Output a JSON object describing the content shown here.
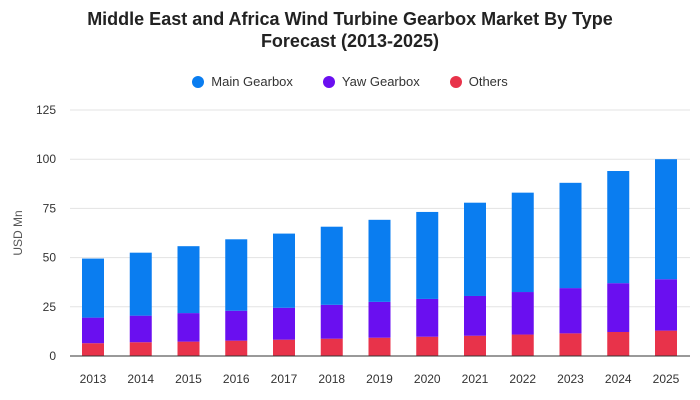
{
  "chart_data": {
    "type": "bar",
    "stacked": true,
    "title_lines": [
      "Middle East and Africa Wind Turbine Gearbox Market By Type",
      "Forecast (2013-2025)"
    ],
    "xlabel": "",
    "ylabel": "USD Mn",
    "ylim": [
      0,
      125
    ],
    "yticks": [
      0,
      25,
      50,
      75,
      100,
      125
    ],
    "grid": true,
    "legend_position": "top",
    "categories": [
      "2013",
      "2014",
      "2015",
      "2016",
      "2017",
      "2018",
      "2019",
      "2020",
      "2021",
      "2022",
      "2023",
      "2024",
      "2025"
    ],
    "series": [
      {
        "name": "Others",
        "color": "#e8334a",
        "values": [
          6.5,
          7,
          7.3,
          7.8,
          8.3,
          8.8,
          9.3,
          9.8,
          10.3,
          10.9,
          11.5,
          12.2,
          12.9
        ]
      },
      {
        "name": "Yaw Gearbox",
        "color": "#6a0ff0",
        "values": [
          13,
          13.5,
          14.5,
          15.2,
          16.2,
          17.2,
          18.2,
          19.2,
          20.2,
          21.6,
          23.0,
          24.8,
          26.1
        ]
      },
      {
        "name": "Main Gearbox",
        "color": "#0a7df0",
        "values": [
          30,
          32,
          34,
          36.3,
          37.7,
          39.7,
          41.7,
          44.2,
          47.4,
          50.5,
          53.5,
          57.0,
          61.0
        ]
      }
    ],
    "legend_order": [
      "Main Gearbox",
      "Yaw Gearbox",
      "Others"
    ]
  }
}
